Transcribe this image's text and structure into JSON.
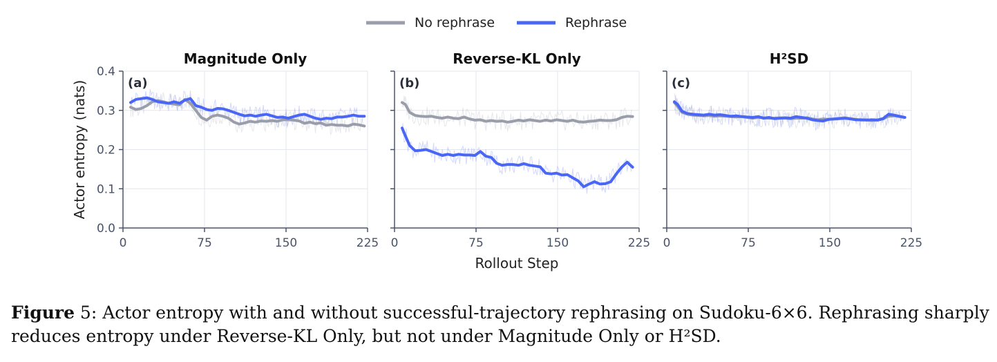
{
  "legend": [
    {
      "label": "No rephrase",
      "color": "#9a9eab"
    },
    {
      "label": "Rephrase",
      "color": "#4a66f5"
    }
  ],
  "chart_data": [
    {
      "type": "line",
      "panel_letter": "(a)",
      "title": "Magnitude Only",
      "ylabel": "Actor entropy (nats)",
      "xlabel": "",
      "xlim": [
        0,
        225
      ],
      "ylim": [
        0.0,
        0.4
      ],
      "xticks": [
        0,
        75,
        150,
        225
      ],
      "xtick_labels": [
        "0",
        "75",
        "150",
        "225"
      ],
      "yticks": [
        0.0,
        0.1,
        0.2,
        0.3,
        0.4
      ],
      "ytick_labels": [
        "0.0",
        "0.1",
        "0.2",
        "0.3",
        "0.4"
      ],
      "grid": true,
      "series": [
        {
          "name": "No rephrase",
          "color": "#9a9eab",
          "x": [
            7,
            12,
            17,
            22,
            27,
            32,
            37,
            42,
            47,
            52,
            57,
            62,
            67,
            72,
            77,
            82,
            87,
            92,
            97,
            102,
            107,
            112,
            117,
            122,
            127,
            132,
            137,
            142,
            147,
            152,
            157,
            162,
            167,
            172,
            177,
            182,
            187,
            192,
            197,
            202,
            207,
            212,
            217,
            222
          ],
          "y": [
            0.308,
            0.302,
            0.305,
            0.312,
            0.322,
            0.325,
            0.322,
            0.318,
            0.316,
            0.314,
            0.328,
            0.318,
            0.3,
            0.282,
            0.275,
            0.285,
            0.288,
            0.285,
            0.28,
            0.27,
            0.265,
            0.268,
            0.272,
            0.27,
            0.273,
            0.272,
            0.274,
            0.272,
            0.276,
            0.276,
            0.275,
            0.273,
            0.267,
            0.27,
            0.266,
            0.268,
            0.262,
            0.264,
            0.262,
            0.262,
            0.26,
            0.265,
            0.263,
            0.26
          ]
        },
        {
          "name": "Rephrase",
          "color": "#4a66f5",
          "x": [
            7,
            12,
            17,
            22,
            27,
            32,
            37,
            42,
            47,
            52,
            57,
            62,
            67,
            72,
            77,
            82,
            87,
            92,
            97,
            102,
            107,
            112,
            117,
            122,
            127,
            132,
            137,
            142,
            147,
            152,
            157,
            162,
            167,
            172,
            177,
            182,
            187,
            192,
            197,
            202,
            207,
            212,
            217,
            222
          ],
          "y": [
            0.32,
            0.328,
            0.33,
            0.332,
            0.328,
            0.322,
            0.32,
            0.318,
            0.322,
            0.318,
            0.326,
            0.33,
            0.312,
            0.308,
            0.302,
            0.3,
            0.305,
            0.304,
            0.3,
            0.295,
            0.29,
            0.286,
            0.288,
            0.285,
            0.288,
            0.29,
            0.286,
            0.282,
            0.283,
            0.28,
            0.284,
            0.288,
            0.29,
            0.285,
            0.28,
            0.277,
            0.28,
            0.279,
            0.283,
            0.283,
            0.285,
            0.288,
            0.285,
            0.285
          ]
        }
      ]
    },
    {
      "type": "line",
      "panel_letter": "(b)",
      "title": "Reverse-KL Only",
      "ylabel": "",
      "xlabel": "Rollout Step",
      "xlim": [
        0,
        225
      ],
      "ylim": [
        0.0,
        0.4
      ],
      "xticks": [
        0,
        75,
        150,
        225
      ],
      "xtick_labels": [
        "0",
        "75",
        "150",
        "225"
      ],
      "yticks": [
        0.0,
        0.1,
        0.2,
        0.3,
        0.4
      ],
      "ytick_labels": [],
      "grid": true,
      "series": [
        {
          "name": "No rephrase",
          "color": "#9a9eab",
          "x": [
            7,
            10,
            14,
            19,
            24,
            29,
            34,
            39,
            44,
            49,
            54,
            59,
            64,
            69,
            74,
            79,
            84,
            89,
            94,
            99,
            104,
            109,
            114,
            119,
            124,
            129,
            134,
            139,
            144,
            149,
            154,
            159,
            164,
            169,
            174,
            179,
            184,
            189,
            194,
            199,
            204,
            209,
            214,
            219
          ],
          "y": [
            0.32,
            0.315,
            0.295,
            0.287,
            0.285,
            0.284,
            0.285,
            0.282,
            0.28,
            0.283,
            0.28,
            0.279,
            0.283,
            0.278,
            0.275,
            0.276,
            0.272,
            0.274,
            0.272,
            0.273,
            0.27,
            0.272,
            0.275,
            0.273,
            0.276,
            0.274,
            0.272,
            0.275,
            0.273,
            0.276,
            0.274,
            0.272,
            0.275,
            0.271,
            0.27,
            0.272,
            0.273,
            0.275,
            0.274,
            0.274,
            0.276,
            0.282,
            0.285,
            0.284
          ]
        },
        {
          "name": "Rephrase",
          "color": "#4a66f5",
          "x": [
            7,
            10,
            14,
            19,
            24,
            29,
            34,
            39,
            44,
            49,
            54,
            59,
            64,
            69,
            74,
            79,
            84,
            89,
            94,
            99,
            104,
            109,
            114,
            119,
            124,
            129,
            134,
            139,
            144,
            149,
            154,
            159,
            164,
            169,
            174,
            179,
            184,
            189,
            194,
            199,
            204,
            209,
            214,
            219
          ],
          "y": [
            0.255,
            0.235,
            0.21,
            0.197,
            0.198,
            0.2,
            0.195,
            0.19,
            0.185,
            0.188,
            0.185,
            0.188,
            0.186,
            0.186,
            0.185,
            0.195,
            0.183,
            0.18,
            0.165,
            0.16,
            0.162,
            0.162,
            0.16,
            0.164,
            0.16,
            0.158,
            0.156,
            0.14,
            0.138,
            0.14,
            0.135,
            0.136,
            0.128,
            0.12,
            0.105,
            0.112,
            0.118,
            0.112,
            0.113,
            0.118,
            0.138,
            0.155,
            0.168,
            0.155
          ]
        }
      ]
    },
    {
      "type": "line",
      "panel_letter": "(c)",
      "title": "H²SD",
      "ylabel": "",
      "xlabel": "",
      "xlim": [
        0,
        225
      ],
      "ylim": [
        0.0,
        0.4
      ],
      "xticks": [
        0,
        75,
        150,
        225
      ],
      "xtick_labels": [
        "0",
        "75",
        "150",
        "225"
      ],
      "yticks": [
        0.0,
        0.1,
        0.2,
        0.3,
        0.4
      ],
      "ytick_labels": [],
      "grid": true,
      "series": [
        {
          "name": "No rephrase",
          "color": "#9a9eab",
          "x": [
            7,
            10,
            14,
            19,
            24,
            29,
            34,
            39,
            44,
            49,
            54,
            59,
            64,
            69,
            74,
            79,
            84,
            89,
            94,
            99,
            104,
            109,
            114,
            119,
            124,
            129,
            134,
            139,
            144,
            149,
            154,
            159,
            164,
            169,
            174,
            179,
            184,
            189,
            194,
            199,
            204,
            209,
            214,
            219
          ],
          "y": [
            0.32,
            0.31,
            0.295,
            0.29,
            0.288,
            0.287,
            0.286,
            0.287,
            0.285,
            0.286,
            0.285,
            0.284,
            0.283,
            0.284,
            0.282,
            0.28,
            0.282,
            0.281,
            0.28,
            0.28,
            0.281,
            0.28,
            0.279,
            0.28,
            0.28,
            0.281,
            0.278,
            0.276,
            0.278,
            0.277,
            0.278,
            0.28,
            0.281,
            0.279,
            0.277,
            0.275,
            0.276,
            0.274,
            0.276,
            0.278,
            0.285,
            0.286,
            0.284,
            0.282
          ]
        },
        {
          "name": "Rephrase",
          "color": "#4a66f5",
          "x": [
            7,
            10,
            14,
            19,
            24,
            29,
            34,
            39,
            44,
            49,
            54,
            59,
            64,
            69,
            74,
            79,
            84,
            89,
            94,
            99,
            104,
            109,
            114,
            119,
            124,
            129,
            134,
            139,
            144,
            149,
            154,
            159,
            164,
            169,
            174,
            179,
            184,
            189,
            194,
            199,
            204,
            209,
            214,
            219
          ],
          "y": [
            0.322,
            0.315,
            0.298,
            0.292,
            0.29,
            0.289,
            0.288,
            0.29,
            0.288,
            0.289,
            0.287,
            0.285,
            0.286,
            0.284,
            0.283,
            0.282,
            0.284,
            0.28,
            0.282,
            0.279,
            0.28,
            0.281,
            0.28,
            0.284,
            0.282,
            0.28,
            0.276,
            0.274,
            0.273,
            0.277,
            0.278,
            0.279,
            0.28,
            0.278,
            0.276,
            0.276,
            0.275,
            0.276,
            0.275,
            0.279,
            0.29,
            0.288,
            0.285,
            0.282
          ]
        }
      ]
    }
  ],
  "caption": {
    "label": "Figure",
    "number": " 5",
    "line1": ": Actor entropy with and without successful-trajectory rephrasing on Sudoku-6×6. Rephrasing sharply",
    "line2": "reduces entropy under Reverse-KL Only, but not under Magnitude Only or H²SD."
  }
}
